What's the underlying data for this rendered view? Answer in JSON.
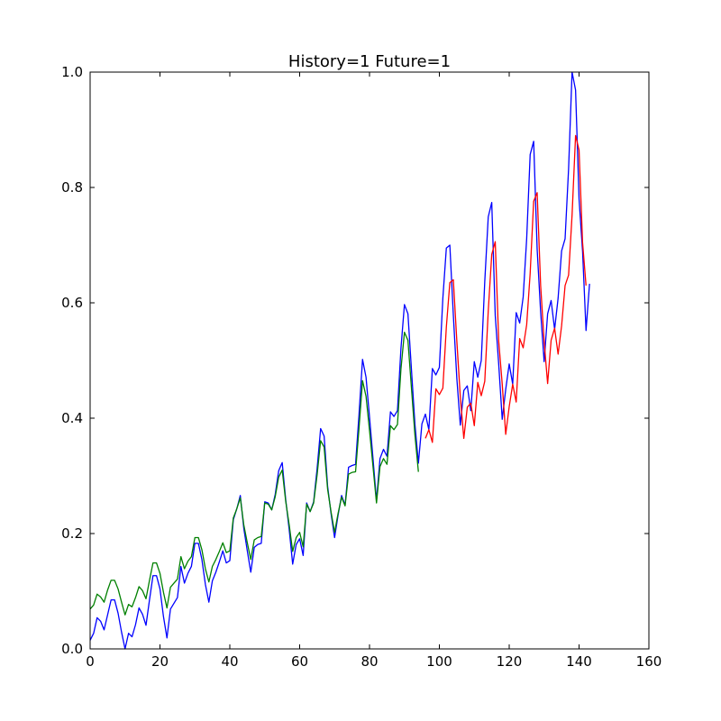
{
  "chart_data": {
    "type": "line",
    "title": "History=1 Future=1",
    "xlabel": "",
    "ylabel": "",
    "xlim": [
      0,
      160
    ],
    "ylim": [
      0.0,
      1.0
    ],
    "xticks": [
      0,
      20,
      40,
      60,
      80,
      100,
      120,
      140,
      160
    ],
    "yticks": [
      0.0,
      0.2,
      0.4,
      0.6,
      0.8,
      1.0
    ],
    "xtick_labels": [
      "0",
      "20",
      "40",
      "60",
      "80",
      "100",
      "120",
      "140",
      "160"
    ],
    "ytick_labels": [
      "0.0",
      "0.2",
      "0.4",
      "0.6",
      "0.8",
      "1.0"
    ],
    "grid": false,
    "legend": "none",
    "series": [
      {
        "color": "#0000ff",
        "x_start": 0,
        "values": [
          0.015,
          0.027,
          0.054,
          0.048,
          0.033,
          0.059,
          0.085,
          0.085,
          0.062,
          0.029,
          0.0,
          0.027,
          0.021,
          0.042,
          0.071,
          0.06,
          0.041,
          0.085,
          0.127,
          0.127,
          0.104,
          0.056,
          0.019,
          0.069,
          0.079,
          0.089,
          0.143,
          0.114,
          0.131,
          0.143,
          0.183,
          0.183,
          0.155,
          0.112,
          0.081,
          0.118,
          0.133,
          0.151,
          0.17,
          0.149,
          0.153,
          0.224,
          0.243,
          0.266,
          0.209,
          0.17,
          0.133,
          0.176,
          0.181,
          0.183,
          0.255,
          0.253,
          0.241,
          0.268,
          0.309,
          0.323,
          0.259,
          0.207,
          0.147,
          0.181,
          0.191,
          0.162,
          0.253,
          0.238,
          0.255,
          0.313,
          0.382,
          0.369,
          0.282,
          0.234,
          0.193,
          0.232,
          0.266,
          0.249,
          0.315,
          0.318,
          0.32,
          0.407,
          0.502,
          0.471,
          0.402,
          0.33,
          0.257,
          0.33,
          0.346,
          0.334,
          0.411,
          0.403,
          0.413,
          0.521,
          0.597,
          0.581,
          0.485,
          0.39,
          0.322,
          0.39,
          0.407,
          0.38,
          0.486,
          0.475,
          0.488,
          0.608,
          0.695,
          0.7,
          0.579,
          0.469,
          0.388,
          0.448,
          0.456,
          0.413,
          0.498,
          0.471,
          0.5,
          0.637,
          0.749,
          0.774,
          0.578,
          0.493,
          0.398,
          0.45,
          0.494,
          0.459,
          0.583,
          0.565,
          0.61,
          0.711,
          0.857,
          0.88,
          0.693,
          0.584,
          0.498,
          0.581,
          0.604,
          0.554,
          0.608,
          0.69,
          0.711,
          0.832,
          1.0,
          0.969,
          0.78,
          0.69,
          0.552,
          0.633
        ]
      },
      {
        "color": "#008000",
        "x_start": 0,
        "values": [
          0.069,
          0.076,
          0.095,
          0.09,
          0.081,
          0.102,
          0.119,
          0.119,
          0.104,
          0.081,
          0.059,
          0.077,
          0.073,
          0.089,
          0.108,
          0.101,
          0.087,
          0.119,
          0.149,
          0.149,
          0.131,
          0.098,
          0.071,
          0.107,
          0.114,
          0.121,
          0.16,
          0.139,
          0.152,
          0.16,
          0.193,
          0.193,
          0.172,
          0.139,
          0.116,
          0.143,
          0.155,
          0.169,
          0.184,
          0.167,
          0.17,
          0.227,
          0.243,
          0.262,
          0.215,
          0.184,
          0.155,
          0.189,
          0.193,
          0.195,
          0.253,
          0.251,
          0.241,
          0.264,
          0.298,
          0.31,
          0.256,
          0.215,
          0.169,
          0.193,
          0.202,
          0.177,
          0.251,
          0.238,
          0.253,
          0.302,
          0.361,
          0.35,
          0.277,
          0.237,
          0.202,
          0.235,
          0.263,
          0.248,
          0.303,
          0.306,
          0.307,
          0.383,
          0.465,
          0.438,
          0.379,
          0.316,
          0.253,
          0.316,
          0.33,
          0.32,
          0.387,
          0.38,
          0.389,
          0.485,
          0.549,
          0.535,
          0.453,
          0.371,
          0.307
        ]
      },
      {
        "color": "#ff0000",
        "x_start": 96,
        "values": [
          0.365,
          0.38,
          0.358,
          0.451,
          0.441,
          0.452,
          0.558,
          0.635,
          0.64,
          0.534,
          0.437,
          0.365,
          0.419,
          0.426,
          0.387,
          0.462,
          0.439,
          0.464,
          0.586,
          0.684,
          0.706,
          0.533,
          0.459,
          0.372,
          0.42,
          0.459,
          0.428,
          0.538,
          0.522,
          0.562,
          0.651,
          0.776,
          0.791,
          0.63,
          0.533,
          0.46,
          0.535,
          0.556,
          0.511,
          0.56,
          0.63,
          0.648,
          0.752,
          0.89,
          0.865,
          0.705,
          0.63
        ]
      }
    ]
  }
}
